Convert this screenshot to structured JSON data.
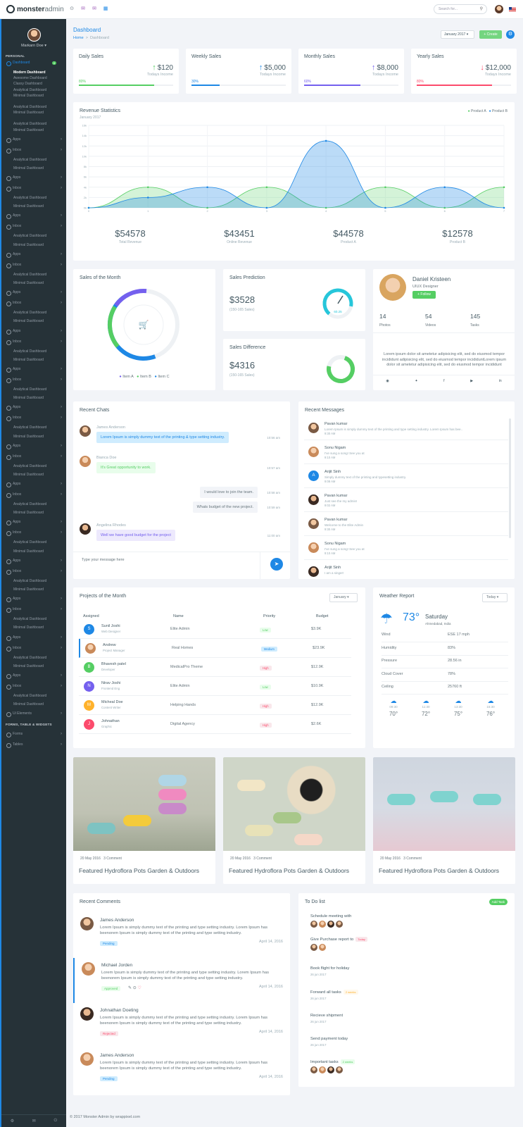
{
  "topbar": {
    "brand_bold": "monster",
    "brand_thin": "admin",
    "search_placeholder": "Search for..."
  },
  "sidebar": {
    "user": "Markarn Doe",
    "sections": [
      {
        "heading": "PERSONAL"
      },
      {
        "heading": "FORMS, TABLE & WIDGETS"
      }
    ],
    "dashboard": "Dashboard",
    "dashboard_badge": "4",
    "sub": [
      "Modern Dashboard",
      "Awesome Dashboard",
      "Classy Dashboard",
      "Analytical Dashboard",
      "Minimal Dashboard",
      "Analytical Dashboard",
      "Minimal Dashboard",
      "Analytical Dashboard",
      "Minimal Dashboard"
    ],
    "apps": "Apps",
    "inbox": "Inbox",
    "analytical": "Analytical Dashboard",
    "minimal": "Minimal Dashboard",
    "ui": "Ui Elements",
    "forms": "Forms",
    "tables": "Tables"
  },
  "header": {
    "title": "Dashboard",
    "crumb_home": "Home",
    "crumb_sep": ">",
    "crumb_cur": "Dashboard",
    "month": "January 2017",
    "create": "+ Create"
  },
  "stats": [
    {
      "title": "Daily Sales",
      "value": "$120",
      "label": "Todays Income",
      "pct": "80%",
      "fill": 0.8,
      "color": "#55ce63",
      "arrow": "↑"
    },
    {
      "title": "Weekly Sales",
      "value": "$5,000",
      "label": "Todays Income",
      "pct": "30%",
      "fill": 0.3,
      "color": "#1e88e5",
      "arrow": "↑"
    },
    {
      "title": "Monthly Sales",
      "value": "$8,000",
      "label": "Todays Income",
      "pct": "60%",
      "fill": 0.6,
      "color": "#7460ee",
      "arrow": "↑"
    },
    {
      "title": "Yearly Sales",
      "value": "$12,000",
      "label": "Todays Income",
      "pct": "80%",
      "fill": 0.8,
      "color": "#fc4b6c",
      "arrow": "↓"
    }
  ],
  "revenue": {
    "title": "Revenue Statistics",
    "subtitle": "January 2017",
    "legend": [
      "Product A",
      "Product B"
    ],
    "totals": [
      {
        "value": "$54578",
        "label": "Total Revenue"
      },
      {
        "value": "$43451",
        "label": "Online Revenue"
      },
      {
        "value": "$44578",
        "label": "Product A"
      },
      {
        "value": "$12578",
        "label": "Product B"
      }
    ]
  },
  "chart_data": {
    "type": "area",
    "x": [
      0,
      1,
      2,
      3,
      4,
      5,
      6,
      7
    ],
    "x_ticks": [
      "0",
      "1",
      "2",
      "3",
      "4",
      "5",
      "6",
      "7"
    ],
    "y_ticks": [
      "0k",
      "2k",
      "4k",
      "6k",
      "8k",
      "10k",
      "12k",
      "14k",
      "16k"
    ],
    "ylim": [
      0,
      16
    ],
    "series": [
      {
        "name": "Product A",
        "color": "#55ce63",
        "values": [
          0,
          4,
          0,
          4,
          0,
          4,
          0,
          4
        ]
      },
      {
        "name": "Product B",
        "color": "#1e88e5",
        "values": [
          0,
          2,
          4,
          0,
          13,
          0,
          4,
          0
        ]
      }
    ]
  },
  "sales_month": {
    "title": "Sales of the Month",
    "legend": [
      "Item A",
      "Item B",
      "Item C"
    ]
  },
  "sales_pred": {
    "title": "Sales Prediction",
    "value": "$3528",
    "range": "(150-165 Sales)",
    "gauge": "60.25"
  },
  "sales_diff": {
    "title": "Sales Difference",
    "value": "$4316",
    "range": "(150-165 Sales)"
  },
  "profile": {
    "name": "Daniel Kristeen",
    "role": "UIUX Designer",
    "follow": "+ Follow",
    "photos": "14",
    "photos_l": "Photos",
    "videos": "54",
    "videos_l": "Videos",
    "tasks": "145",
    "tasks_l": "Tasks",
    "bio": "Lorem ipsum dolor sit ametetur adipisicing elit, sed do eiusmod tempor incididunt adipisicing elit, sed do eiusmod tempor incididuntLorem ipsum dolor sit ametetur adipisicing elit, sed do eiusmod tempor incididunt"
  },
  "chats": {
    "title": "Recent Chats",
    "placeholder": "Type your message here",
    "msgs": [
      {
        "name": "James Anderson",
        "text": "Lorem Ipsum is simply dummy text of the printing & type setting industry.",
        "time": "10:56 am"
      },
      {
        "name": "Bianca Doe",
        "text": "It's Great opportunity to work.",
        "time": "10:57 am"
      },
      {
        "text": "I would love to join the team.",
        "time": "10:58 am"
      },
      {
        "text": "Whats budget of the new project.",
        "time": "10:59 am"
      },
      {
        "name": "Angelina Rhodes",
        "text": "Well we have good budget for the project",
        "time": "11:00 am"
      }
    ]
  },
  "messages": {
    "title": "Recent Messages",
    "items": [
      {
        "name": "Pavan kumar",
        "text": "Lorem Ipsum is simply dummy text of the printing and type setting industry. Lorem Ipsum has bee..",
        "time": "9:30 AM"
      },
      {
        "name": "Sonu Nigam",
        "text": "I've sung a song! See you at",
        "time": "9:10 AM"
      },
      {
        "name": "Arijit Sinh",
        "text": "Simply dummy text of the printing and typesetting industry.",
        "time": "9:08 AM",
        "initial": "A"
      },
      {
        "name": "Pavan kumar",
        "text": "Just see the my admin!",
        "time": "9:02 AM"
      },
      {
        "name": "Pavan kumar",
        "text": "Welcome to the Elite Admin",
        "time": "9:30 AM"
      },
      {
        "name": "Sonu Nigam",
        "text": "I've sung a song! See you at",
        "time": "9:10 AM"
      },
      {
        "name": "Arijit Sinh",
        "text": "I am a singer!",
        "time": ""
      }
    ]
  },
  "projects": {
    "title": "Projects of the Month",
    "filter": "January",
    "cols": [
      "Assigned",
      "Name",
      "Priority",
      "Budget"
    ],
    "rows": [
      {
        "initial": "S",
        "name": "Sunil Joshi",
        "role": "Web Designer",
        "project": "Elite Admin",
        "priority": "Low",
        "budget": "$3.9K",
        "color": "#1e88e5"
      },
      {
        "initial": "",
        "name": "Andrew",
        "role": "Project Manager",
        "project": "Real Homes",
        "priority": "Medium",
        "budget": "$23.9K",
        "color": ""
      },
      {
        "initial": "B",
        "name": "Bhavesh patel",
        "role": "Developer",
        "project": "MedicalPro Theme",
        "priority": "High",
        "budget": "$12.9K",
        "color": "#55ce63"
      },
      {
        "initial": "N",
        "name": "Nirav Joshi",
        "role": "Frontend Eng",
        "project": "Elite Admin",
        "priority": "Low",
        "budget": "$10.9K",
        "color": "#7460ee"
      },
      {
        "initial": "M",
        "name": "Micheal Doe",
        "role": "Content Writer",
        "project": "Helping Hands",
        "priority": "High",
        "budget": "$12.9K",
        "color": "#ffb22b"
      },
      {
        "initial": "J",
        "name": "Johnathan",
        "role": "Graphic",
        "project": "Digital Agency",
        "priority": "High",
        "budget": "$2.6K",
        "color": "#fc4b6c"
      }
    ]
  },
  "weather": {
    "title": "Weather Report",
    "filter": "Today",
    "temp": "73",
    "deg": "°",
    "day": "Saturday",
    "place": "Ahmedabad, India",
    "rows": [
      {
        "k": "Wind",
        "v": "ESE 17 mph"
      },
      {
        "k": "Humidity",
        "v": "83%"
      },
      {
        "k": "Pressure",
        "v": "28.56 in"
      },
      {
        "k": "Cloud Cover",
        "v": "78%"
      },
      {
        "k": "Ceiling",
        "v": "25760 ft"
      }
    ],
    "forecast": [
      {
        "t": "09:30",
        "d": "70°"
      },
      {
        "t": "11:30",
        "d": "72°"
      },
      {
        "t": "13:30",
        "d": "75°"
      },
      {
        "t": "15:30",
        "d": "76°"
      }
    ]
  },
  "blogs": [
    {
      "date": "20 May 2016",
      "comments": "3 Comment",
      "title": "Featured Hydroflora Pots Garden & Outdoors"
    },
    {
      "date": "20 May 2016",
      "comments": "3 Comment",
      "title": "Featured Hydroflora Pots Garden & Outdoors"
    },
    {
      "date": "20 May 2016",
      "comments": "3 Comment",
      "title": "Featured Hydroflora Pots Garden & Outdoors"
    }
  ],
  "comments": {
    "title": "Recent Comments",
    "items": [
      {
        "name": "James Anderson",
        "text": "Lorem Ipsum is simply dummy text of the printing and type setting industry. Lorem Ipsum has beenorem Ipsum is simply dummy text of the printing and type setting industry.",
        "status": "Pending",
        "date": "April 14, 2016"
      },
      {
        "name": "Michael Jorden",
        "text": "Lorem Ipsum is simply dummy text of the printing and type setting industry. Lorem Ipsum has beenorem Ipsum is simply dummy text of the printing and type setting industry.",
        "status": "Approved",
        "date": "April 14, 2016"
      },
      {
        "name": "Johnathan Doeting",
        "text": "Lorem Ipsum is simply dummy text of the printing and type setting industry. Lorem Ipsum has beenorem Ipsum is simply dummy text of the printing and type setting industry.",
        "status": "Rejected",
        "date": "April 14, 2016"
      },
      {
        "name": "James Anderson",
        "text": "Lorem Ipsum is simply dummy text of the printing and type setting industry. Lorem Ipsum has beenorem Ipsum is simply dummy text of the printing and type setting industry.",
        "status": "Pending",
        "date": "April 14, 2016"
      }
    ]
  },
  "todo": {
    "title": "To Do list",
    "add": "Add Task",
    "items": [
      {
        "text": "Schedule meeting with",
        "date": "",
        "tag": ""
      },
      {
        "text": "Give Purchase report to",
        "date": "",
        "tag": "Today"
      },
      {
        "text": "Book flight for holiday",
        "date": "26 jun 2017",
        "tag": ""
      },
      {
        "text": "Forward all tasks",
        "date": "26 jun 2017",
        "tag": "2 weeks"
      },
      {
        "text": "Recieve shipment",
        "date": "26 jun 2017",
        "tag": ""
      },
      {
        "text": "Send payment today",
        "date": "26 jun 2017",
        "tag": ""
      },
      {
        "text": "Important tasks",
        "date": "",
        "tag": "2 weeks"
      }
    ]
  },
  "footer": "© 2017 Monster Admin by wrappixel.com"
}
